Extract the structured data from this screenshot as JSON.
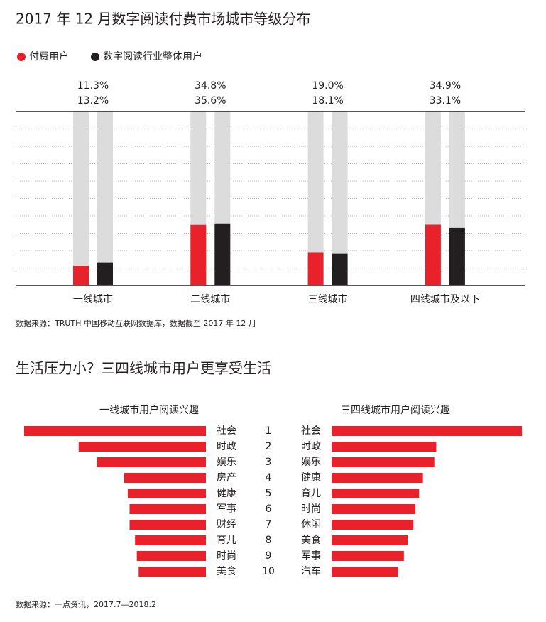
{
  "chart_data": [
    {
      "type": "bar",
      "title": "2017 年 12 月数字阅读付费市场城市等级分布",
      "categories": [
        "一线城市",
        "二线城市",
        "三线城市",
        "四线城市及以下"
      ],
      "series": [
        {
          "name": "付费用户",
          "color": "#e8212a",
          "values": [
            11.3,
            34.8,
            19.0,
            34.9
          ],
          "value_labels": [
            "11.3%",
            "34.8%",
            "19.0%",
            "34.9%"
          ]
        },
        {
          "name": "数字阅读行业整体用户",
          "color": "#231f20",
          "values": [
            13.2,
            35.6,
            18.1,
            33.1
          ],
          "value_labels": [
            "13.2%",
            "35.6%",
            "18.1%",
            "33.1%"
          ]
        }
      ],
      "ylim": [
        0,
        100
      ],
      "grid": true,
      "source": "数据来源：TRUTH 中国移动互联网数据库，数据截至 2017 年 12 月"
    },
    {
      "type": "barh-mirrored",
      "title": "生活压力小？三四线城市用户更享受生活",
      "ranks": [
        1,
        2,
        3,
        4,
        5,
        6,
        7,
        8,
        9,
        10
      ],
      "series": [
        {
          "name": "一线城市用户阅读兴趣",
          "color": "#e8212a",
          "categories": [
            "社会",
            "时政",
            "娱乐",
            "房产",
            "健康",
            "军事",
            "财经",
            "育儿",
            "时尚",
            "美食"
          ],
          "values": [
            100,
            70,
            60,
            45,
            43,
            42,
            42,
            39,
            38,
            37
          ]
        },
        {
          "name": "三四线城市用户阅读兴趣",
          "color": "#e8212a",
          "categories": [
            "社会",
            "时政",
            "娱乐",
            "健康",
            "育儿",
            "时尚",
            "休闲",
            "美食",
            "军事",
            "汽车"
          ],
          "values": [
            100,
            55,
            54,
            48,
            46,
            44,
            43,
            40,
            38,
            35
          ],
          "highlight": 6
        }
      ],
      "xlim": [
        0,
        100
      ],
      "source": "数据来源：一点资讯，2017.7—2018.2"
    }
  ]
}
